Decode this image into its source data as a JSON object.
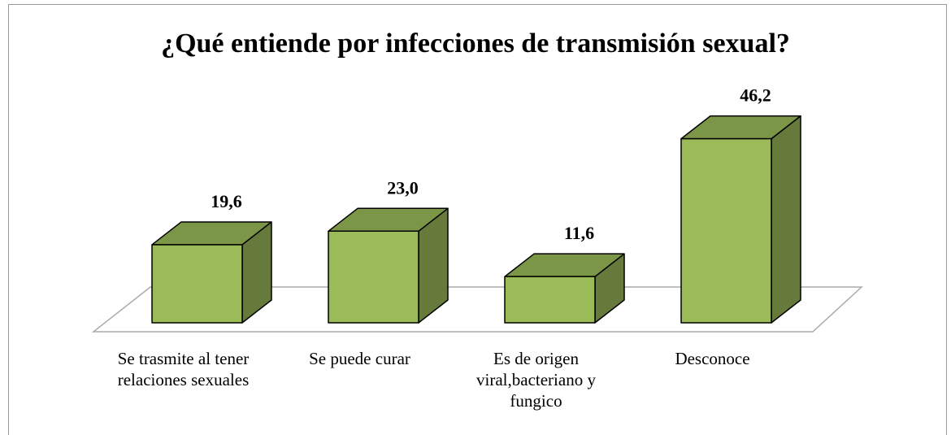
{
  "chart_data": {
    "type": "bar3d",
    "title": "¿Qué entiende por infecciones de transmisión sexual?",
    "categories": [
      "Se trasmite al tener relaciones sexuales",
      "Se puede curar",
      "Es de origen viral,bacteriano y fungico",
      "Desconoce"
    ],
    "values": [
      19.6,
      23.0,
      11.6,
      46.2
    ],
    "value_labels": [
      "19,6",
      "23,0",
      "11,6",
      "46,2"
    ],
    "color": "#9bbb59"
  }
}
